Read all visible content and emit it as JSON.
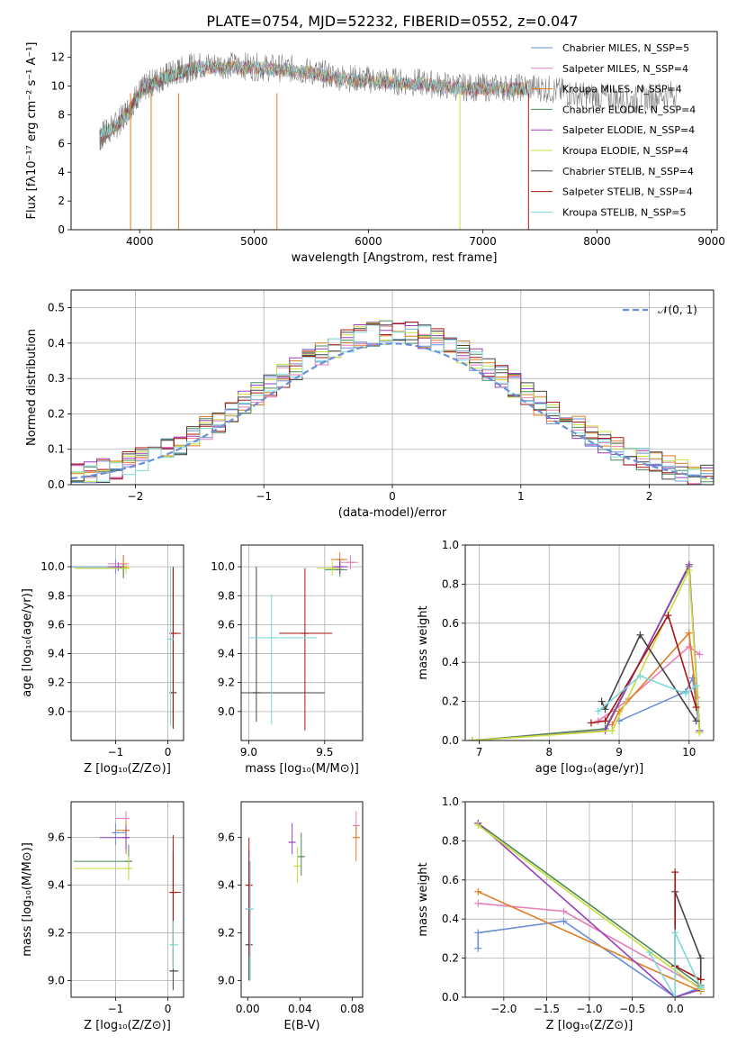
{
  "figure_title": "PLATE=0754, MJD=52232, FIBERID=0552, z=0.047",
  "series_colors": [
    "#6a8fd8",
    "#e87fb8",
    "#e07d22",
    "#4b8a5a",
    "#9a3fb8",
    "#c9dd3a",
    "#444444",
    "#a81515",
    "#7fd8d8"
  ],
  "chart_data": [
    {
      "id": "spectrum",
      "type": "line",
      "title": "PLATE=0754, MJD=52232, FIBERID=0552, z=0.047",
      "xlabel": "wavelength [Angstrom, rest frame]",
      "ylabel": "Flux [fλ10⁻¹⁷ erg cm⁻² s⁻¹ A⁻¹]",
      "xlim": [
        3400,
        9050
      ],
      "ylim": [
        0,
        13.8
      ],
      "xticks": [
        4000,
        5000,
        6000,
        7000,
        8000,
        9000
      ],
      "yticks": [
        0,
        2,
        4,
        6,
        8,
        10,
        12
      ],
      "grid": false,
      "legend_position": "top-right",
      "legend": [
        "Chabrier MILES, N_SSP=5",
        "Salpeter MILES, N_SSP=4",
        "Kroupa MILES, N_SSP=4",
        "Chabrier ELODIE, N_SSP=4",
        "Salpeter ELODIE, N_SSP=4",
        "Kroupa ELODIE, N_SSP=4",
        "Chabrier STELIB, N_SSP=4",
        "Salpeter STELIB, N_SSP=4",
        "Kroupa STELIB, N_SSP=5"
      ],
      "data_trace": {
        "name": "data",
        "x": [
          3650,
          3700,
          3800,
          3900,
          4000,
          4100,
          4200,
          4300,
          4400,
          4500,
          4700,
          4900,
          5100,
          5300,
          5500,
          5700,
          5900,
          6100,
          6300,
          6500,
          6700,
          6900,
          7100,
          7300,
          7500,
          7700,
          7900,
          8100,
          8300,
          8500,
          8700
        ],
        "y": [
          6.3,
          6.8,
          7.3,
          8.4,
          9.6,
          10.2,
          10.6,
          10.9,
          11.2,
          11.4,
          11.5,
          11.4,
          11.3,
          11.2,
          11.0,
          10.7,
          10.5,
          10.4,
          10.3,
          10.2,
          10.0,
          9.9,
          9.9,
          9.9,
          9.9,
          9.6,
          9.3,
          9.2,
          9.0,
          9.3,
          9.5
        ]
      },
      "model_trace": {
        "x": [
          3650,
          3700,
          3800,
          3900,
          4000,
          4100,
          4200,
          4300,
          4400,
          4500,
          4700,
          4900,
          5100,
          5300,
          5500,
          5700,
          5900,
          6100,
          6300,
          6500,
          6700,
          6900,
          7100,
          7300,
          7400
        ],
        "y": [
          6.5,
          6.8,
          7.2,
          8.2,
          9.5,
          10.1,
          10.5,
          10.8,
          11.1,
          11.3,
          11.3,
          11.3,
          11.2,
          11.1,
          10.9,
          10.6,
          10.4,
          10.3,
          10.2,
          10.1,
          9.9,
          9.8,
          9.8,
          9.8,
          9.8
        ]
      },
      "drops": [
        {
          "x": 3920,
          "series": 2
        },
        {
          "x": 4100,
          "series": 2
        },
        {
          "x": 4340,
          "series": 2
        },
        {
          "x": 5200,
          "series": 2
        },
        {
          "x": 6800,
          "series": 5
        },
        {
          "x": 7400,
          "series": 7
        }
      ]
    },
    {
      "id": "residuals",
      "type": "histogram",
      "xlabel": "(data-model)/error",
      "ylabel": "Normed distribution",
      "xlim": [
        -2.5,
        2.5
      ],
      "ylim": [
        0,
        0.55
      ],
      "xticks": [
        -2,
        -1,
        0,
        1,
        2
      ],
      "yticks": [
        0.0,
        0.1,
        0.2,
        0.3,
        0.4,
        0.5
      ],
      "grid": true,
      "legend_position": "top-right",
      "legend": [
        "𝒩(0, 1)"
      ],
      "bin_width": 0.1,
      "gaussian": {
        "mean": 0,
        "sigma": 1
      }
    },
    {
      "id": "z-age",
      "type": "errorbar",
      "xlabel": "Z [log₁₀(Z/Z⊙)]",
      "ylabel": "age  [log₁₀(age/yr)]",
      "xlim": [
        -1.85,
        0.3
      ],
      "ylim": [
        8.8,
        10.15
      ],
      "xticks": [
        -1,
        0
      ],
      "yticks": [
        9.0,
        9.2,
        9.4,
        9.6,
        9.8,
        10.0
      ],
      "grid": true,
      "points": [
        {
          "series": 0,
          "x": -1.0,
          "y": 10.0,
          "xl": 0.9,
          "xh": 0.2,
          "yl": 0.05,
          "yh": 0.05
        },
        {
          "series": 1,
          "x": -0.85,
          "y": 10.02,
          "xl": 0.3,
          "xh": 0.1,
          "yl": 0.05,
          "yh": 0.06
        },
        {
          "series": 2,
          "x": -0.85,
          "y": 10.0,
          "xl": 0.1,
          "xh": 0.1,
          "yl": 0.07,
          "yh": 0.08
        },
        {
          "series": 3,
          "x": -0.85,
          "y": 9.99,
          "xl": 0.9,
          "xh": 0.05,
          "yl": 0.07,
          "yh": 0.03
        },
        {
          "series": 4,
          "x": -0.95,
          "y": 10.0,
          "xl": 0.2,
          "xh": 0.1,
          "yl": 0.03,
          "yh": 0.03
        },
        {
          "series": 5,
          "x": -0.8,
          "y": 9.99,
          "xl": 1.0,
          "xh": 0.05,
          "yl": 0.04,
          "yh": 0.04
        },
        {
          "series": 6,
          "x": 0.1,
          "y": 9.13,
          "xl": 0.05,
          "xh": 0.05,
          "yl": 0.25,
          "yh": 0.87
        },
        {
          "series": 7,
          "x": 0.1,
          "y": 9.54,
          "xl": 0.05,
          "xh": 0.15,
          "yl": 0.65,
          "yh": 0.45
        },
        {
          "series": 8,
          "x": 0.05,
          "y": 9.5,
          "xl": 0.02,
          "xh": 0.02,
          "yl": 0.6,
          "yh": 0.5
        }
      ]
    },
    {
      "id": "mass-age",
      "type": "errorbar",
      "xlabel": "mass [log₁₀(M/M⊙)]",
      "ylabel": "",
      "xlim": [
        8.95,
        9.75
      ],
      "ylim": [
        8.8,
        10.15
      ],
      "xticks": [
        9.0,
        9.5
      ],
      "yticks": [
        9.0,
        9.2,
        9.4,
        9.6,
        9.8,
        10.0
      ],
      "grid": true,
      "points": [
        {
          "series": 0,
          "x": 9.6,
          "y": 10.0,
          "xl": 0.05,
          "xh": 0.05,
          "yl": 0.05,
          "yh": 0.05
        },
        {
          "series": 1,
          "x": 9.67,
          "y": 10.03,
          "xl": 0.07,
          "xh": 0.05,
          "yl": 0.05,
          "yh": 0.05
        },
        {
          "series": 2,
          "x": 9.6,
          "y": 10.05,
          "xl": 0.06,
          "xh": 0.05,
          "yl": 0.1,
          "yh": 0.05
        },
        {
          "series": 3,
          "x": 9.6,
          "y": 9.98,
          "xl": 0.1,
          "xh": 0.05,
          "yl": 0.05,
          "yh": 0.05
        },
        {
          "series": 4,
          "x": 9.6,
          "y": 10.0,
          "xl": 0.05,
          "xh": 0.05,
          "yl": 0.05,
          "yh": 0.05
        },
        {
          "series": 5,
          "x": 9.55,
          "y": 9.99,
          "xl": 0.1,
          "xh": 0.05,
          "yl": 0.05,
          "yh": 0.05
        },
        {
          "series": 6,
          "x": 9.05,
          "y": 9.13,
          "xl": 0.1,
          "xh": 0.45,
          "yl": 0.2,
          "yh": 0.87
        },
        {
          "series": 7,
          "x": 9.37,
          "y": 9.54,
          "xl": 0.17,
          "xh": 0.18,
          "yl": 0.67,
          "yh": 0.45
        },
        {
          "series": 8,
          "x": 9.15,
          "y": 9.51,
          "xl": 0.15,
          "xh": 0.3,
          "yl": 0.6,
          "yh": 0.3
        }
      ]
    },
    {
      "id": "age-weight",
      "type": "line",
      "xlabel": "age  [log₁₀(age/yr)]",
      "ylabel": "mass weight",
      "xlim": [
        6.8,
        10.35
      ],
      "ylim": [
        0,
        1.0
      ],
      "xticks": [
        7,
        8,
        9,
        10
      ],
      "yticks": [
        0.0,
        0.2,
        0.4,
        0.6,
        0.8,
        1.0
      ],
      "grid": true,
      "series": [
        {
          "x": [
            9.0,
            9.95,
            10.05,
            10.15
          ],
          "y": [
            0.1,
            0.25,
            0.32,
            0.05
          ]
        },
        {
          "x": [
            8.7,
            9.1,
            10.0,
            10.15
          ],
          "y": [
            0.1,
            0.2,
            0.48,
            0.44
          ]
        },
        {
          "x": [
            8.9,
            9.0,
            10.0,
            10.1
          ],
          "y": [
            0.08,
            0.15,
            0.55,
            0.22
          ]
        },
        {
          "x": [
            6.9,
            8.8,
            10.0,
            10.15
          ],
          "y": [
            0.0,
            0.06,
            0.89,
            0.05
          ]
        },
        {
          "x": [
            6.9,
            8.8,
            10.0,
            10.15
          ],
          "y": [
            0.0,
            0.05,
            0.9,
            0.05
          ]
        },
        {
          "x": [
            6.9,
            8.9,
            10.0,
            10.15
          ],
          "y": [
            0.0,
            0.05,
            0.87,
            0.04
          ]
        },
        {
          "x": [
            8.75,
            8.8,
            9.3,
            10.1
          ],
          "y": [
            0.2,
            0.16,
            0.54,
            0.1
          ]
        },
        {
          "x": [
            8.6,
            8.8,
            9.7,
            10.1
          ],
          "y": [
            0.09,
            0.1,
            0.64,
            0.17
          ]
        },
        {
          "x": [
            8.7,
            9.3,
            9.95,
            10.1
          ],
          "y": [
            0.15,
            0.33,
            0.24,
            0.28
          ]
        }
      ]
    },
    {
      "id": "z-mass",
      "type": "errorbar",
      "xlabel": "Z [log₁₀(Z/Z⊙)]",
      "ylabel": "mass [log₁₀(M/M⊙)]",
      "xlim": [
        -1.85,
        0.3
      ],
      "ylim": [
        8.93,
        9.75
      ],
      "xticks": [
        -1,
        0
      ],
      "yticks": [
        9.0,
        9.2,
        9.4,
        9.6
      ],
      "grid": true,
      "points": [
        {
          "series": 0,
          "x": -1.0,
          "y": 9.62,
          "xl": 0.05,
          "xh": 0.2,
          "yl": 0.05,
          "yh": 0.04
        },
        {
          "series": 1,
          "x": -0.8,
          "y": 9.68,
          "xl": 0.2,
          "xh": 0.05,
          "yl": 0.05,
          "yh": 0.03
        },
        {
          "series": 2,
          "x": -0.8,
          "y": 9.63,
          "xl": 0.2,
          "xh": 0.05,
          "yl": 0.1,
          "yh": 0.04
        },
        {
          "series": 3,
          "x": -0.75,
          "y": 9.5,
          "xl": 1.05,
          "xh": 0.03,
          "yl": 0.07,
          "yh": 0.07
        },
        {
          "series": 4,
          "x": -0.8,
          "y": 9.6,
          "xl": 0.5,
          "xh": 0.05,
          "yl": 0.05,
          "yh": 0.05
        },
        {
          "series": 5,
          "x": -0.75,
          "y": 9.47,
          "xl": 1.05,
          "xh": 0.03,
          "yl": 0.05,
          "yh": 0.05
        },
        {
          "series": 6,
          "x": 0.1,
          "y": 9.04,
          "xl": 0.05,
          "xh": 0.1,
          "yl": 0.08,
          "yh": 0.5
        },
        {
          "series": 7,
          "x": 0.1,
          "y": 9.37,
          "xl": 0.05,
          "xh": 0.15,
          "yl": 0.3,
          "yh": 0.24
        },
        {
          "series": 8,
          "x": 0.1,
          "y": 9.15,
          "xl": 0.05,
          "xh": 0.1,
          "yl": 0.1,
          "yh": 0.1
        }
      ]
    },
    {
      "id": "ebv-mass",
      "type": "errorbar",
      "xlabel": "E(B-V)",
      "ylabel": "",
      "xlim": [
        -0.005,
        0.088
      ],
      "ylim": [
        8.93,
        9.75
      ],
      "xticks": [
        0.0,
        0.04,
        0.08
      ],
      "xtick_labels": [
        "0.00",
        "0.04",
        "0.08"
      ],
      "yticks": [
        9.0,
        9.2,
        9.4,
        9.6
      ],
      "grid": false,
      "points": [
        {
          "series": 0,
          "x": 0.001,
          "y": 9.3,
          "xl": 0,
          "xh": 0,
          "yl": 0.3,
          "yh": 0.25
        },
        {
          "series": 1,
          "x": 0.083,
          "y": 9.65,
          "xl": 0,
          "xh": 0,
          "yl": 0.05,
          "yh": 0.06
        },
        {
          "series": 2,
          "x": 0.083,
          "y": 9.6,
          "xl": 0,
          "xh": 0,
          "yl": 0.1,
          "yh": 0.05
        },
        {
          "series": 3,
          "x": 0.041,
          "y": 9.52,
          "xl": 0,
          "xh": 0,
          "yl": 0.08,
          "yh": 0.1
        },
        {
          "series": 4,
          "x": 0.034,
          "y": 9.58,
          "xl": 0,
          "xh": 0,
          "yl": 0.05,
          "yh": 0.08
        },
        {
          "series": 5,
          "x": 0.038,
          "y": 9.48,
          "xl": 0,
          "xh": 0,
          "yl": 0.07,
          "yh": 0.08
        },
        {
          "series": 6,
          "x": 0.001,
          "y": 9.15,
          "xl": 0,
          "xh": 0,
          "yl": 0.15,
          "yh": 0.35
        },
        {
          "series": 7,
          "x": 0.001,
          "y": 9.4,
          "xl": 0,
          "xh": 0,
          "yl": 0.3,
          "yh": 0.2
        },
        {
          "series": 8,
          "x": 0.002,
          "y": 9.3,
          "xl": 0,
          "xh": 0,
          "yl": 0.3,
          "yh": 0.2
        }
      ]
    },
    {
      "id": "z-weight",
      "type": "line",
      "xlabel": "Z [log₁₀(Z/Z⊙)]",
      "ylabel": "mass weight",
      "xlim": [
        -2.45,
        0.45
      ],
      "ylim": [
        0,
        1.0
      ],
      "xticks": [
        -2.0,
        -1.5,
        -1.0,
        -0.5,
        0.0
      ],
      "xtick_labels": [
        "−2.0",
        "−1.5",
        "−1.0",
        "−0.5",
        "0.0"
      ],
      "yticks": [
        0.0,
        0.2,
        0.4,
        0.6,
        0.8,
        1.0
      ],
      "grid": true,
      "series": [
        {
          "x": [
            -2.3,
            -2.3,
            -1.3,
            0.0,
            0.3
          ],
          "y": [
            0.25,
            0.33,
            0.39,
            0.0,
            0.05
          ]
        },
        {
          "x": [
            -2.3,
            -1.3,
            0.3
          ],
          "y": [
            0.48,
            0.44,
            0.05
          ]
        },
        {
          "x": [
            -2.3,
            0.3
          ],
          "y": [
            0.54,
            0.03
          ]
        },
        {
          "x": [
            -2.3,
            0.3
          ],
          "y": [
            0.89,
            0.06
          ]
        },
        {
          "x": [
            -2.3,
            0.0,
            0.3
          ],
          "y": [
            0.89,
            0.0,
            0.04
          ]
        },
        {
          "x": [
            -2.3,
            0.3
          ],
          "y": [
            0.88,
            0.04
          ]
        },
        {
          "x": [
            0.0,
            0.0,
            0.3,
            0.3
          ],
          "y": [
            0.16,
            0.54,
            0.2,
            0.09
          ]
        },
        {
          "x": [
            0.0,
            0.0,
            0.3
          ],
          "y": [
            0.64,
            0.16,
            0.09
          ]
        },
        {
          "x": [
            -0.3,
            0.0,
            0.0,
            0.3
          ],
          "y": [
            0.23,
            0.0,
            0.33,
            0.05
          ]
        }
      ]
    }
  ]
}
